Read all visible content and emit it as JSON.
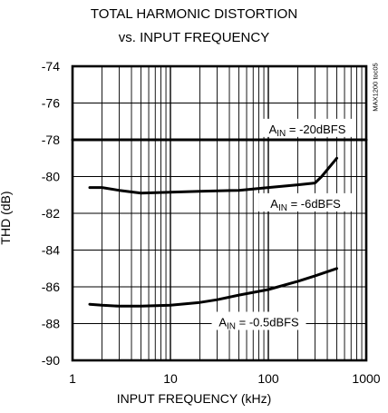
{
  "chart_data": {
    "type": "line",
    "title": "TOTAL HARMONIC DISTORTION",
    "subtitle": "vs. INPUT FREQUENCY",
    "xlabel": "INPUT FREQUENCY (kHz)",
    "ylabel": "THD (dB)",
    "x_scale": "log",
    "xlim": [
      1,
      1000
    ],
    "ylim": [
      -90,
      -74
    ],
    "x_ticks": [
      "1",
      "10",
      "100",
      "1000"
    ],
    "y_ticks": [
      "-74",
      "-76",
      "-78",
      "-80",
      "-82",
      "-84",
      "-86",
      "-88",
      "-90"
    ],
    "grid": true,
    "id_tag": "MAX1200 toc05",
    "series": [
      {
        "name": "AIN = -20dBFS",
        "label_main": "A",
        "label_sub": "IN",
        "label_rest": " = -20dBFS",
        "x": [
          1,
          1000
        ],
        "y": [
          -78.0,
          -78.0
        ]
      },
      {
        "name": "AIN = -6dBFS",
        "label_main": "A",
        "label_sub": "IN",
        "label_rest": " = -6dBFS",
        "x": [
          1.5,
          2,
          3,
          5,
          10,
          20,
          50,
          100,
          200,
          300,
          350,
          500
        ],
        "y": [
          -80.6,
          -80.6,
          -80.75,
          -80.9,
          -80.85,
          -80.8,
          -80.75,
          -80.6,
          -80.45,
          -80.35,
          -80.0,
          -79.0
        ]
      },
      {
        "name": "AIN = -0.5dBFS",
        "label_main": "A",
        "label_sub": "IN",
        "label_rest": " = -0.5dBFS",
        "x": [
          1.5,
          2,
          3,
          5,
          10,
          20,
          30,
          50,
          100,
          200,
          300,
          500
        ],
        "y": [
          -86.95,
          -87.0,
          -87.05,
          -87.05,
          -87.0,
          -86.85,
          -86.7,
          -86.45,
          -86.15,
          -85.7,
          -85.4,
          -85.0
        ]
      }
    ]
  }
}
